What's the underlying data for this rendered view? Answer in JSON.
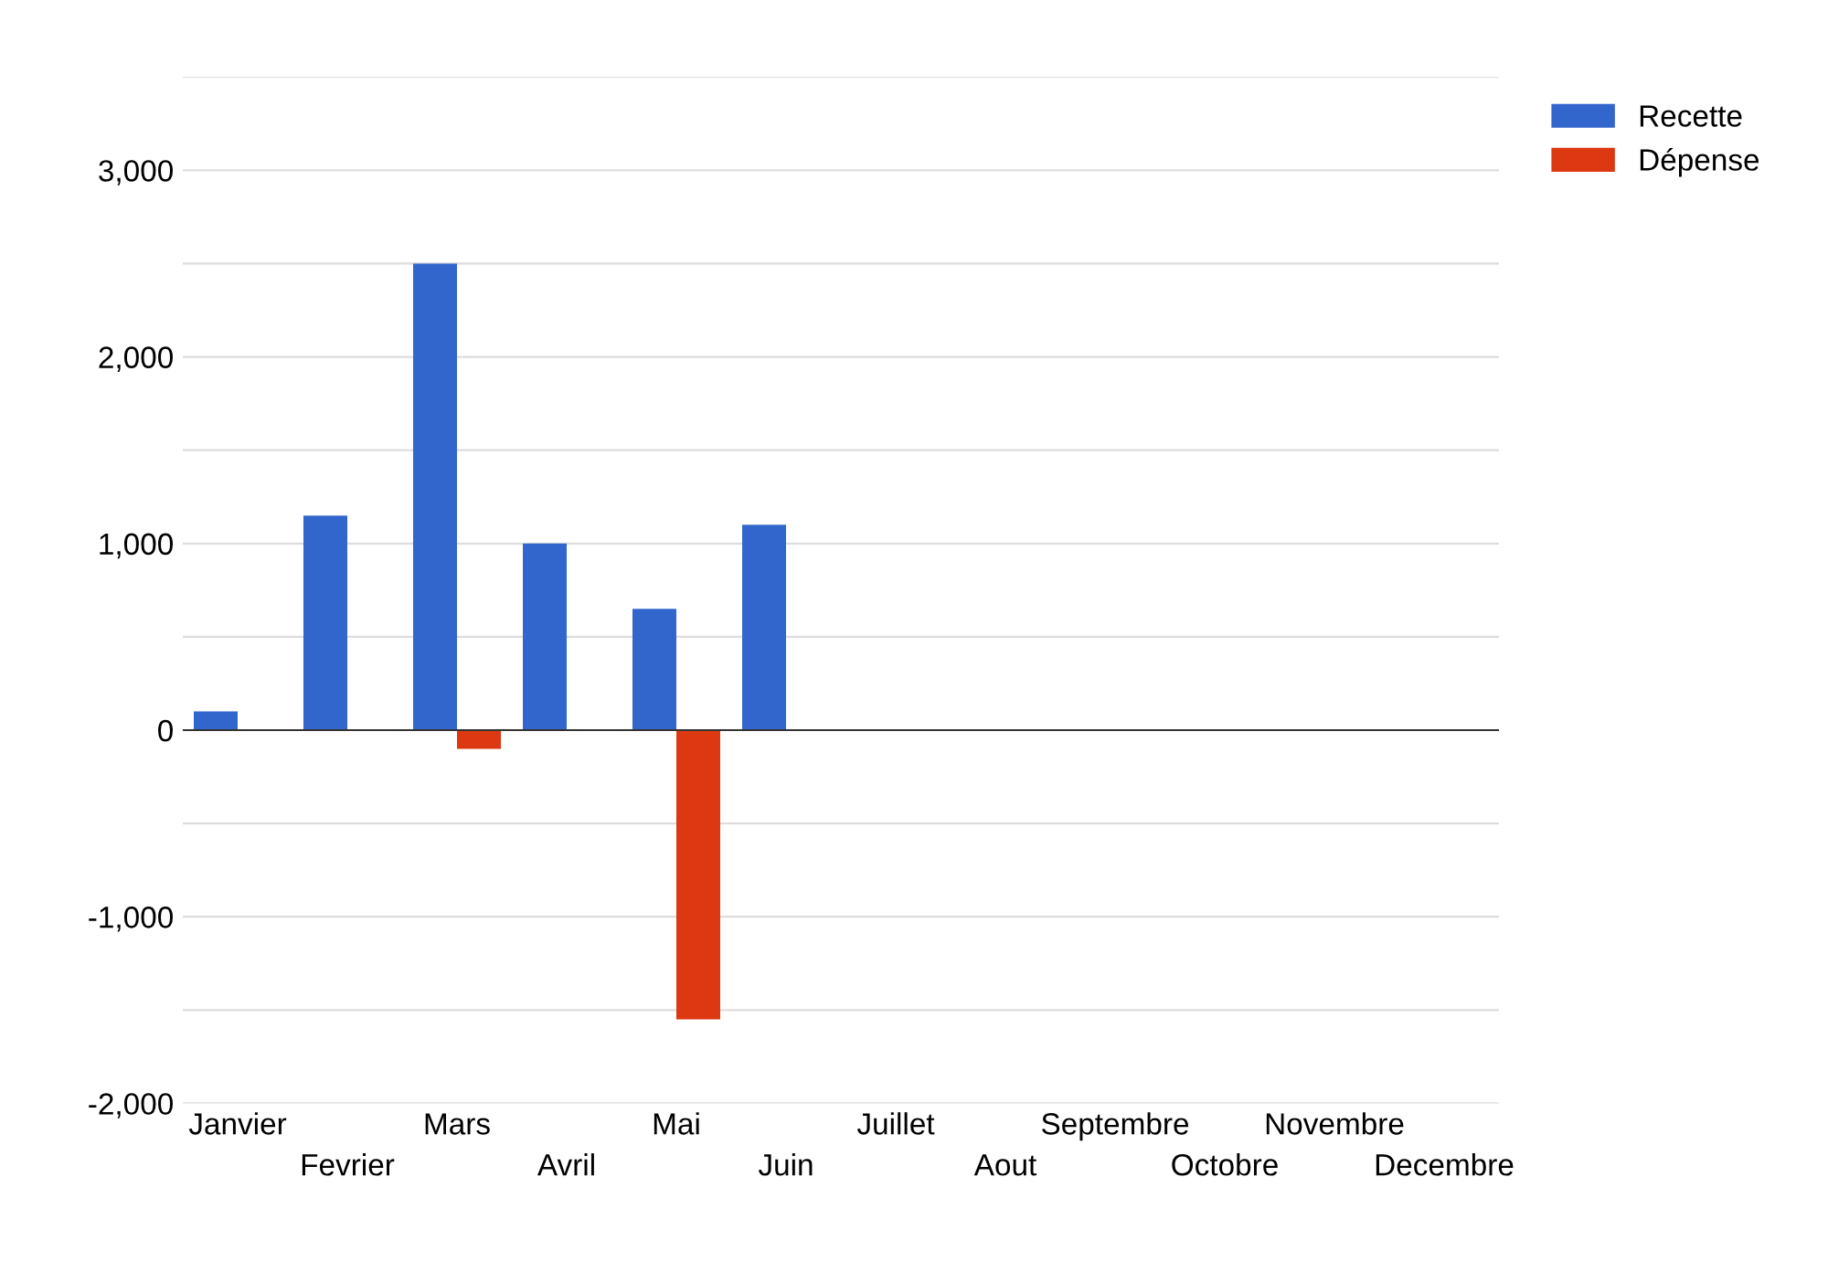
{
  "chart_data": {
    "type": "bar",
    "categories": [
      "Janvier",
      "Fevrier",
      "Mars",
      "Avril",
      "Mai",
      "Juin",
      "Juillet",
      "Aout",
      "Septembre",
      "Octobre",
      "Novembre",
      "Decembre"
    ],
    "series": [
      {
        "name": "Recette",
        "color": "#3366cc",
        "values": [
          100,
          1150,
          2500,
          1000,
          650,
          1100,
          null,
          null,
          null,
          null,
          null,
          null
        ]
      },
      {
        "name": "Dépense",
        "color": "#dc3912",
        "values": [
          null,
          null,
          -100,
          null,
          -1550,
          null,
          null,
          null,
          null,
          null,
          null,
          null
        ]
      }
    ],
    "ylim": [
      -2000,
      3500
    ],
    "yticks": [
      {
        "value": -2000,
        "label": "-2,000"
      },
      {
        "value": -1500,
        "label": null
      },
      {
        "value": -1000,
        "label": "-1,000"
      },
      {
        "value": -500,
        "label": null
      },
      0,
      {
        "value": 500,
        "label": null
      },
      {
        "value": 1000,
        "label": "1,000"
      },
      {
        "value": 1500,
        "label": null
      },
      {
        "value": 2000,
        "label": "2,000"
      },
      {
        "value": 2500,
        "label": null
      },
      {
        "value": 3000,
        "label": "3,000"
      },
      {
        "value": 3500,
        "label": null
      }
    ],
    "grid": "y",
    "legend": "top right"
  }
}
